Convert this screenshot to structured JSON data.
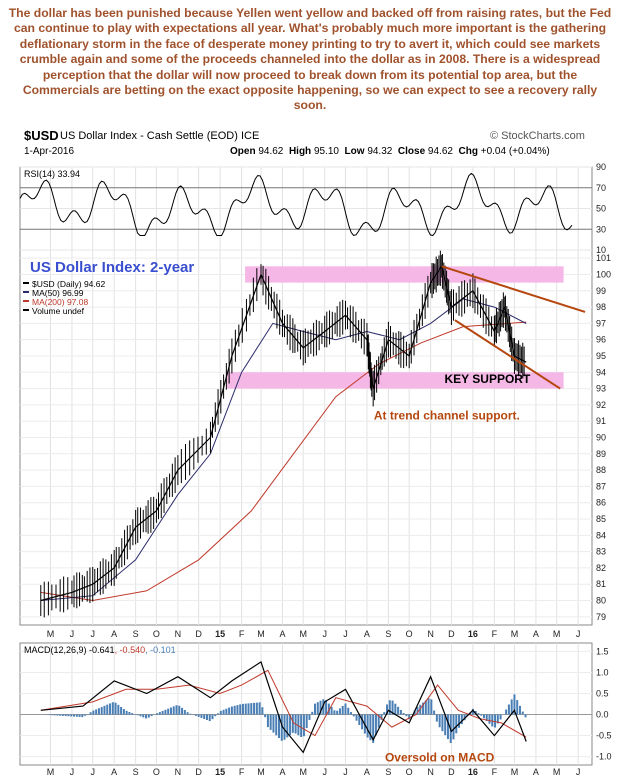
{
  "commentary": "The dollar has been punished because Yellen went yellow and backed off from raising rates, but the Fed can continue to play with expectations all year. What's probably much more important is the gathering deflationary storm in the face of desperate money printing to try to avert it, which could see markets crumble again and some of the proceeds channeled into the dollar as in 2008. There is a widespread perception that the dollar will now proceed to break down from its potential top area, but the Commercials are betting on the exact opposite happening, so we can expect to see  a recovery rally soon.",
  "header": {
    "symbol": "$USD",
    "name": "US Dollar Index - Cash Settle (EOD) ICE",
    "source": "© StockCharts.com",
    "date": "1-Apr-2016",
    "open_label": "Open",
    "open": "94.62",
    "high_label": "High",
    "high": "95.10",
    "low_label": "Low",
    "low": "94.32",
    "close_label": "Close",
    "close": "94.62",
    "chg_label": "Chg",
    "chg": "+0.04 (+0.04%)"
  },
  "colors": {
    "price": "#000000",
    "ma50": "#2b2b6b",
    "ma200": "#c0392b",
    "band": "#f5b8e6",
    "trend": "#b5470f",
    "annotation": "#b5470f",
    "title": "#3a4fd0",
    "rsi_fill": "#777777",
    "macd_hist": "#4a7fb5"
  },
  "chart_data": [
    {
      "type": "line",
      "panel": "RSI",
      "legend": "RSI(14) 33.94",
      "ylim": [
        10,
        90
      ],
      "yticks": [
        10,
        30,
        50,
        70,
        90
      ],
      "reference_lines": [
        30,
        70
      ],
      "last_value": 33.94
    },
    {
      "type": "line",
      "panel": "price",
      "title": "US Dollar Index: 2-year",
      "legend": [
        "$USD (Daily) 94.62",
        "MA(50) 96.99",
        "MA(200) 97.08",
        "Volume undef"
      ],
      "ylim": [
        78.5,
        101.5
      ],
      "yticks": [
        79,
        80,
        81,
        82,
        83,
        84,
        85,
        86,
        87,
        88,
        89,
        90,
        91,
        92,
        93,
        94,
        95,
        96,
        97,
        98,
        99,
        100,
        101
      ],
      "xlabels": [
        "M",
        "J",
        "J",
        "A",
        "S",
        "O",
        "N",
        "D",
        "15",
        "F",
        "M",
        "A",
        "M",
        "J",
        "J",
        "A",
        "S",
        "O",
        "N",
        "D",
        "16",
        "F",
        "M",
        "A",
        "M",
        "J"
      ],
      "series": [
        {
          "name": "$USD (Daily)",
          "x": [
            "2014-05-01",
            "2014-06-15",
            "2014-07-15",
            "2014-08-15",
            "2014-09-15",
            "2014-10-15",
            "2014-11-15",
            "2015-01-01",
            "2015-02-01",
            "2015-03-15",
            "2015-04-15",
            "2015-05-15",
            "2015-06-15",
            "2015-07-15",
            "2015-08-15",
            "2015-08-24",
            "2015-09-15",
            "2015-10-15",
            "2015-11-15",
            "2015-12-01",
            "2015-12-15",
            "2016-01-15",
            "2016-02-15",
            "2016-03-01",
            "2016-03-15",
            "2016-04-01"
          ],
          "values": [
            80.0,
            80.5,
            81.0,
            82.0,
            84.5,
            85.5,
            88.0,
            90.0,
            95.0,
            100.0,
            97.0,
            95.5,
            96.5,
            97.5,
            96.0,
            93.0,
            96.0,
            95.0,
            99.5,
            100.5,
            98.0,
            99.0,
            96.5,
            98.0,
            95.0,
            94.62
          ]
        },
        {
          "name": "MA(50)",
          "x": [
            "2014-05-01",
            "2014-07-15",
            "2014-09-15",
            "2014-11-15",
            "2015-01-01",
            "2015-02-15",
            "2015-04-01",
            "2015-05-15",
            "2015-07-01",
            "2015-08-15",
            "2015-10-01",
            "2015-11-15",
            "2016-01-01",
            "2016-02-15",
            "2016-04-01"
          ],
          "values": [
            80.0,
            80.3,
            82.5,
            86.5,
            89.0,
            94.0,
            97.0,
            96.5,
            96.0,
            96.5,
            96.0,
            97.0,
            98.5,
            98.0,
            96.99
          ]
        },
        {
          "name": "MA(200)",
          "x": [
            "2014-05-01",
            "2014-07-15",
            "2014-10-01",
            "2014-12-15",
            "2015-03-01",
            "2015-05-01",
            "2015-07-01",
            "2015-09-01",
            "2015-11-01",
            "2016-01-01",
            "2016-04-01"
          ],
          "values": [
            80.5,
            80.0,
            80.6,
            82.5,
            85.5,
            89.0,
            92.5,
            94.5,
            95.8,
            96.8,
            97.08
          ]
        }
      ],
      "bands": [
        [
          99.5,
          100.5
        ],
        [
          93.0,
          94.0
        ]
      ],
      "trendlines": [
        {
          "x": [
            "2015-12-01",
            "2016-06-25"
          ],
          "values": [
            100.5,
            97.7
          ]
        },
        {
          "x": [
            "2015-12-20",
            "2016-05-20"
          ],
          "values": [
            97.2,
            93.0
          ]
        }
      ],
      "annotations": [
        "KEY SUPPORT",
        "At trend channel support."
      ]
    },
    {
      "type": "line",
      "panel": "MACD",
      "legend": [
        "MACD(12,26,9)",
        "-0.641",
        "-0.540",
        "-0.101"
      ],
      "ylim": [
        -1.2,
        1.7
      ],
      "yticks": [
        -1.0,
        -0.5,
        0.0,
        0.5,
        1.0,
        1.5
      ],
      "ytick_labels": [
        "-1.0",
        "-0.5",
        "0.0",
        "0.5",
        "1.0",
        "1.5"
      ],
      "series": [
        {
          "name": "MACD",
          "x": [
            "2014-05-01",
            "2014-07-01",
            "2014-08-15",
            "2014-10-01",
            "2014-11-15",
            "2015-01-01",
            "2015-02-01",
            "2015-03-15",
            "2015-04-15",
            "2015-05-15",
            "2015-06-15",
            "2015-07-15",
            "2015-08-24",
            "2015-09-15",
            "2015-10-15",
            "2015-11-15",
            "2015-12-15",
            "2016-01-15",
            "2016-02-15",
            "2016-03-15",
            "2016-04-01"
          ],
          "values": [
            0.1,
            0.2,
            0.8,
            0.5,
            0.9,
            0.4,
            0.8,
            1.25,
            -0.3,
            -0.9,
            0.3,
            0.6,
            -0.6,
            0.1,
            -0.2,
            0.9,
            -0.4,
            0.1,
            -0.5,
            0.1,
            -0.641
          ]
        },
        {
          "name": "Signal",
          "x": [
            "2014-05-01",
            "2014-07-15",
            "2014-09-01",
            "2014-10-15",
            "2014-12-01",
            "2015-01-15",
            "2015-02-15",
            "2015-03-25",
            "2015-05-01",
            "2015-06-01",
            "2015-07-01",
            "2015-08-15",
            "2015-09-20",
            "2015-10-25",
            "2015-11-25",
            "2015-12-25",
            "2016-01-25",
            "2016-02-25",
            "2016-04-01"
          ],
          "values": [
            0.1,
            0.3,
            0.6,
            0.6,
            0.7,
            0.5,
            0.7,
            1.05,
            -0.2,
            -0.5,
            0.4,
            0.2,
            -0.3,
            0.0,
            0.7,
            0.1,
            -0.1,
            -0.2,
            -0.54
          ]
        }
      ],
      "histogram_last": -0.101,
      "xlabels": [
        "M",
        "J",
        "J",
        "A",
        "S",
        "O",
        "N",
        "D",
        "15",
        "F",
        "M",
        "A",
        "M",
        "J",
        "J",
        "A",
        "S",
        "O",
        "N",
        "D",
        "16",
        "F",
        "M",
        "A",
        "M",
        "J"
      ],
      "annotations": [
        "Oversold on MACD"
      ]
    }
  ]
}
